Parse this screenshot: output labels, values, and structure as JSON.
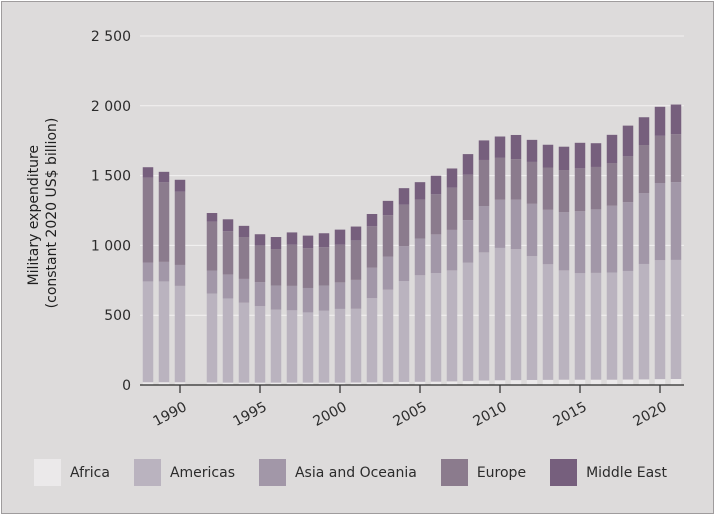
{
  "chart_data": {
    "type": "bar",
    "stacked": true,
    "ylabel": [
      "Military expenditure",
      "(constant 2020 US$ billion)"
    ],
    "ylim": [
      0,
      2500
    ],
    "yticks": [
      0,
      500,
      1000,
      1500,
      2000,
      2500
    ],
    "ytick_labels": [
      "0",
      "500",
      "1 000",
      "1 500",
      "2 000",
      "2 500"
    ],
    "xticks": [
      1990,
      1995,
      2000,
      2005,
      2010,
      2015,
      2020
    ],
    "xtick_labels": [
      "1990",
      "1995",
      "2000",
      "2005",
      "2010",
      "2015",
      "2020"
    ],
    "grid": "horizontal",
    "legend_position": "bottom",
    "categories": [
      1988,
      1989,
      1990,
      1991,
      1992,
      1993,
      1994,
      1995,
      1996,
      1997,
      1998,
      1999,
      2000,
      2001,
      2002,
      2003,
      2004,
      2005,
      2006,
      2007,
      2008,
      2009,
      2010,
      2011,
      2012,
      2013,
      2014,
      2015,
      2016,
      2017,
      2018,
      2019,
      2020,
      2021
    ],
    "series": [
      {
        "name": "Africa",
        "color": "#ebe9ea",
        "values": [
          20,
          20,
          20,
          null,
          18,
          17,
          17,
          17,
          17,
          17,
          17,
          17,
          17,
          18,
          19,
          20,
          22,
          23,
          24,
          26,
          28,
          32,
          34,
          35,
          36,
          37,
          38,
          38,
          38,
          38,
          39,
          40,
          42,
          43
        ]
      },
      {
        "name": "Americas",
        "color": "#bab3bf",
        "values": [
          722,
          722,
          690,
          null,
          637,
          603,
          573,
          548,
          523,
          518,
          503,
          515,
          528,
          528,
          603,
          663,
          723,
          763,
          778,
          795,
          848,
          918,
          948,
          938,
          887,
          828,
          783,
          763,
          765,
          768,
          778,
          827,
          852,
          853
        ]
      },
      {
        "name": "Asia and Oceania",
        "color": "#a297a8",
        "values": [
          135,
          140,
          150,
          null,
          165,
          172,
          170,
          172,
          172,
          175,
          175,
          180,
          190,
          207,
          218,
          237,
          250,
          262,
          277,
          290,
          305,
          332,
          345,
          355,
          375,
          390,
          418,
          445,
          455,
          478,
          493,
          508,
          553,
          557
        ]
      },
      {
        "name": "Europe",
        "color": "#8b7b8d",
        "values": [
          608,
          570,
          525,
          null,
          350,
          310,
          300,
          263,
          262,
          295,
          285,
          275,
          270,
          283,
          297,
          296,
          297,
          280,
          287,
          302,
          325,
          330,
          300,
          290,
          300,
          303,
          301,
          306,
          304,
          306,
          328,
          344,
          338,
          344
        ]
      },
      {
        "name": "Middle East",
        "color": "#765f7d",
        "values": [
          75,
          75,
          85,
          null,
          62,
          85,
          80,
          80,
          86,
          88,
          90,
          100,
          108,
          99,
          88,
          103,
          118,
          125,
          133,
          138,
          148,
          140,
          153,
          173,
          158,
          163,
          167,
          183,
          170,
          202,
          220,
          199,
          208,
          212
        ]
      }
    ]
  }
}
